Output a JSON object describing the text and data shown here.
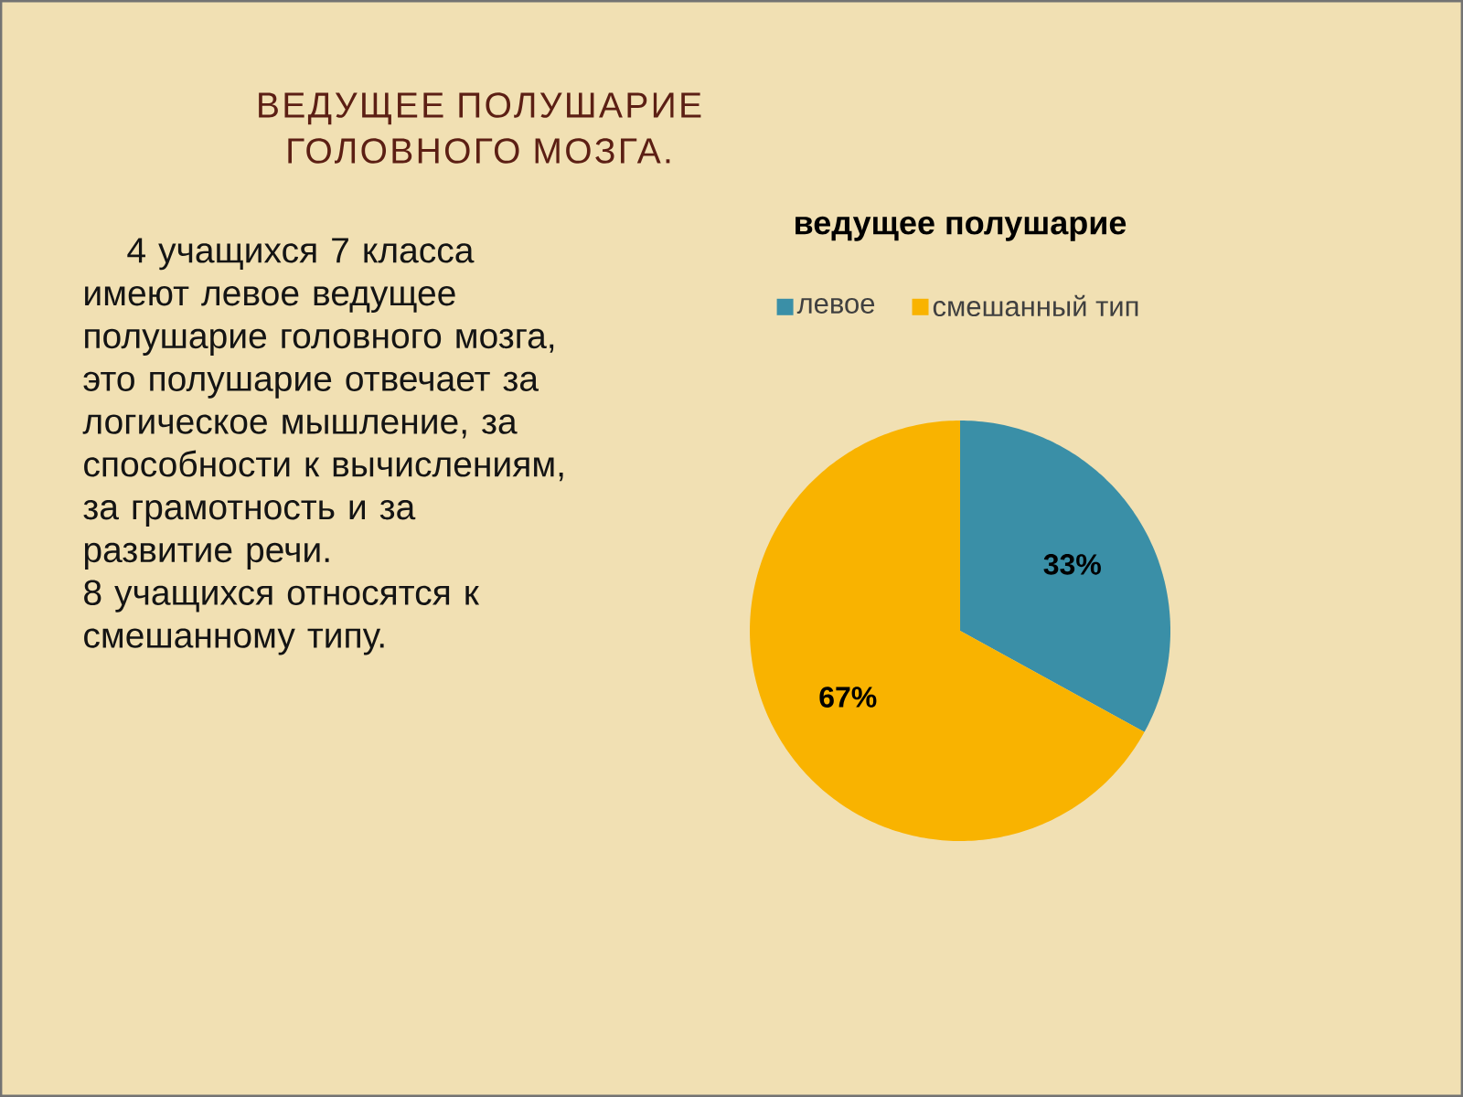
{
  "chart_data": {
    "type": "pie",
    "title": "ВЕДУЩЕЕ ПОЛУШАРИЕ ГОЛОВНОГО МОЗГА.",
    "subtitle": "ведущее полушарие",
    "annotations": [
      "4 учащихся 7 класса имеют левое ведущее полушарие головного мозга, это полушарие отвечает за логическое мышление, за способности к вычислениям, за грамотность и за развитие речи.",
      "8 учащихся относятся к смешанному типу."
    ],
    "categories": [
      "левое",
      "смешанный тип"
    ],
    "values": [
      33,
      67
    ],
    "value_labels": [
      "33%",
      "67%"
    ],
    "colors": [
      "#3a8fa7",
      "#f9b300"
    ],
    "legend": "top"
  }
}
